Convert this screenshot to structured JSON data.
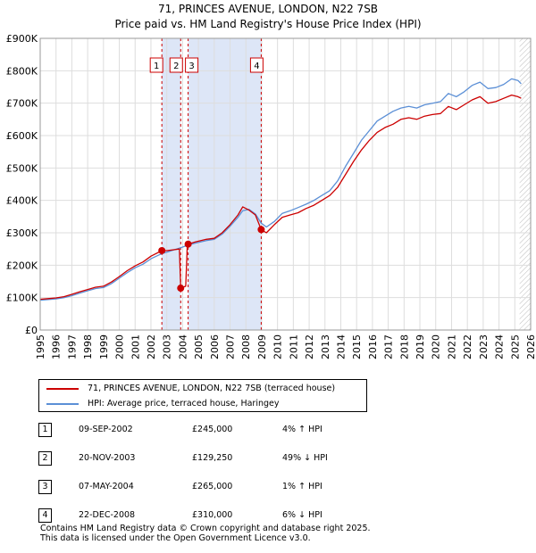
{
  "chart_data": {
    "type": "line",
    "title": "71, PRINCES AVENUE, LONDON, N22 7SB",
    "subtitle": "Price paid vs. HM Land Registry's House Price Index (HPI)",
    "xlim": [
      1995,
      2026
    ],
    "ylim": [
      0,
      900000
    ],
    "x_ticks": [
      "1995",
      "1996",
      "1997",
      "1998",
      "1999",
      "2000",
      "2001",
      "2002",
      "2003",
      "2004",
      "2005",
      "2006",
      "2007",
      "2008",
      "2009",
      "2010",
      "2011",
      "2012",
      "2013",
      "2014",
      "2015",
      "2016",
      "2017",
      "2018",
      "2019",
      "2020",
      "2021",
      "2022",
      "2023",
      "2024",
      "2025",
      "2026"
    ],
    "y_ticks": [
      {
        "value": 0,
        "label": "£0"
      },
      {
        "value": 100000,
        "label": "£100K"
      },
      {
        "value": 200000,
        "label": "£200K"
      },
      {
        "value": 300000,
        "label": "£300K"
      },
      {
        "value": 400000,
        "label": "£400K"
      },
      {
        "value": 500000,
        "label": "£500K"
      },
      {
        "value": 600000,
        "label": "£600K"
      },
      {
        "value": 700000,
        "label": "£700K"
      },
      {
        "value": 800000,
        "label": "£800K"
      },
      {
        "value": 900000,
        "label": "£900K"
      }
    ],
    "grid": true,
    "series": [
      {
        "name": "71, PRINCES AVENUE, LONDON, N22 7SB (terraced house)",
        "color": "#cc0000",
        "points": [
          [
            1995.0,
            95000
          ],
          [
            1995.5,
            97000
          ],
          [
            1996.0,
            99000
          ],
          [
            1996.5,
            103000
          ],
          [
            1997.0,
            110000
          ],
          [
            1997.5,
            118000
          ],
          [
            1998.0,
            125000
          ],
          [
            1998.5,
            132000
          ],
          [
            1999.0,
            135000
          ],
          [
            1999.5,
            148000
          ],
          [
            2000.0,
            165000
          ],
          [
            2000.5,
            183000
          ],
          [
            2001.0,
            198000
          ],
          [
            2001.5,
            210000
          ],
          [
            2002.0,
            228000
          ],
          [
            2002.69,
            245000
          ],
          [
            2003.0,
            245000
          ],
          [
            2003.5,
            248000
          ],
          [
            2003.8,
            250000
          ],
          [
            2003.88,
            129250
          ],
          [
            2004.2,
            135000
          ],
          [
            2004.3,
            265000
          ],
          [
            2004.35,
            265000
          ],
          [
            2004.8,
            272000
          ],
          [
            2005.5,
            280000
          ],
          [
            2006.0,
            283000
          ],
          [
            2006.5,
            300000
          ],
          [
            2007.0,
            325000
          ],
          [
            2007.5,
            355000
          ],
          [
            2007.8,
            380000
          ],
          [
            2008.2,
            370000
          ],
          [
            2008.6,
            355000
          ],
          [
            2008.97,
            310000
          ],
          [
            2009.3,
            300000
          ],
          [
            2009.8,
            325000
          ],
          [
            2010.3,
            348000
          ],
          [
            2010.8,
            355000
          ],
          [
            2011.3,
            362000
          ],
          [
            2011.8,
            375000
          ],
          [
            2012.3,
            385000
          ],
          [
            2012.8,
            400000
          ],
          [
            2013.3,
            415000
          ],
          [
            2013.8,
            440000
          ],
          [
            2014.3,
            480000
          ],
          [
            2014.8,
            520000
          ],
          [
            2015.3,
            555000
          ],
          [
            2015.8,
            585000
          ],
          [
            2016.3,
            610000
          ],
          [
            2016.8,
            625000
          ],
          [
            2017.3,
            635000
          ],
          [
            2017.8,
            650000
          ],
          [
            2018.3,
            655000
          ],
          [
            2018.8,
            650000
          ],
          [
            2019.3,
            660000
          ],
          [
            2019.8,
            665000
          ],
          [
            2020.3,
            668000
          ],
          [
            2020.8,
            690000
          ],
          [
            2021.3,
            680000
          ],
          [
            2021.8,
            695000
          ],
          [
            2022.3,
            710000
          ],
          [
            2022.8,
            720000
          ],
          [
            2023.3,
            700000
          ],
          [
            2023.8,
            705000
          ],
          [
            2024.3,
            715000
          ],
          [
            2024.8,
            725000
          ],
          [
            2025.2,
            720000
          ],
          [
            2025.4,
            715000
          ]
        ]
      },
      {
        "name": "HPI: Average price, terraced house, Haringey",
        "color": "#5b8fd6",
        "points": [
          [
            1995.0,
            92000
          ],
          [
            1995.5,
            94000
          ],
          [
            1996.0,
            96000
          ],
          [
            1996.5,
            100000
          ],
          [
            1997.0,
            106000
          ],
          [
            1997.5,
            114000
          ],
          [
            1998.0,
            121000
          ],
          [
            1998.5,
            128000
          ],
          [
            1999.0,
            131000
          ],
          [
            1999.5,
            143000
          ],
          [
            2000.0,
            160000
          ],
          [
            2000.5,
            177000
          ],
          [
            2001.0,
            192000
          ],
          [
            2001.5,
            203000
          ],
          [
            2002.0,
            220000
          ],
          [
            2002.69,
            236000
          ],
          [
            2003.0,
            240000
          ],
          [
            2003.5,
            248000
          ],
          [
            2003.88,
            254000
          ],
          [
            2004.35,
            262000
          ],
          [
            2004.8,
            268000
          ],
          [
            2005.5,
            276000
          ],
          [
            2006.0,
            280000
          ],
          [
            2006.5,
            296000
          ],
          [
            2007.0,
            320000
          ],
          [
            2007.5,
            348000
          ],
          [
            2007.8,
            368000
          ],
          [
            2008.2,
            372000
          ],
          [
            2008.6,
            358000
          ],
          [
            2008.97,
            330000
          ],
          [
            2009.3,
            318000
          ],
          [
            2009.8,
            335000
          ],
          [
            2010.3,
            360000
          ],
          [
            2010.8,
            368000
          ],
          [
            2011.3,
            378000
          ],
          [
            2011.8,
            388000
          ],
          [
            2012.3,
            400000
          ],
          [
            2012.8,
            415000
          ],
          [
            2013.3,
            430000
          ],
          [
            2013.8,
            460000
          ],
          [
            2014.3,
            505000
          ],
          [
            2014.8,
            545000
          ],
          [
            2015.3,
            585000
          ],
          [
            2015.8,
            615000
          ],
          [
            2016.3,
            645000
          ],
          [
            2016.8,
            660000
          ],
          [
            2017.3,
            675000
          ],
          [
            2017.8,
            685000
          ],
          [
            2018.3,
            690000
          ],
          [
            2018.8,
            685000
          ],
          [
            2019.3,
            695000
          ],
          [
            2019.8,
            700000
          ],
          [
            2020.3,
            705000
          ],
          [
            2020.8,
            730000
          ],
          [
            2021.3,
            720000
          ],
          [
            2021.8,
            735000
          ],
          [
            2022.3,
            755000
          ],
          [
            2022.8,
            765000
          ],
          [
            2023.3,
            745000
          ],
          [
            2023.8,
            748000
          ],
          [
            2024.3,
            758000
          ],
          [
            2024.8,
            775000
          ],
          [
            2025.2,
            770000
          ],
          [
            2025.4,
            760000
          ]
        ]
      }
    ],
    "sales": [
      {
        "num": "1",
        "x": 2002.69,
        "price": 245000,
        "date": "09-SEP-2002",
        "price_label": "£245,000",
        "hpi": "4% ↑ HPI"
      },
      {
        "num": "2",
        "x": 2003.88,
        "price": 129250,
        "date": "20-NOV-2003",
        "price_label": "£129,250",
        "hpi": "49% ↓ HPI"
      },
      {
        "num": "3",
        "x": 2004.35,
        "price": 265000,
        "date": "07-MAY-2004",
        "price_label": "£265,000",
        "hpi": "1% ↑ HPI"
      },
      {
        "num": "4",
        "x": 2008.97,
        "price": 310000,
        "date": "22-DEC-2008",
        "price_label": "£310,000",
        "hpi": "6% ↓ HPI"
      }
    ],
    "shaded_ranges": [
      [
        2002.69,
        2003.88
      ],
      [
        2004.35,
        2008.97
      ]
    ],
    "forecast_from": 2025.0,
    "colors": {
      "property": "#cc0000",
      "hpi": "#5b8fd6",
      "shade": "#dde6f7",
      "marker_line": "#cc0000"
    }
  },
  "footer": {
    "line1": "Contains HM Land Registry data © Crown copyright and database right 2025.",
    "line2": "This data is licensed under the Open Government Licence v3.0."
  }
}
